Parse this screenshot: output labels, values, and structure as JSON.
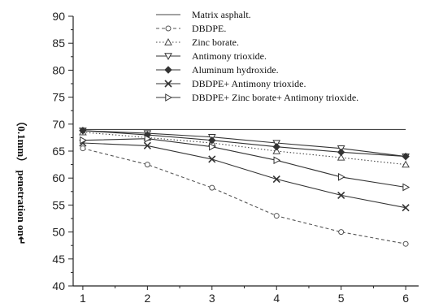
{
  "chart_data": {
    "type": "line",
    "title": "",
    "xlabel": "",
    "ylabel": "（0.1mm） penetration on↵",
    "x": [
      1,
      2,
      3,
      4,
      5,
      6
    ],
    "xlim": [
      0.85,
      6.2
    ],
    "ylim": [
      40,
      90
    ],
    "yticks": [
      40,
      45,
      50,
      55,
      60,
      65,
      70,
      75,
      80,
      85,
      90
    ],
    "grid": false,
    "legend_position": "top-right",
    "series": [
      {
        "name": "Matrix asphalt.",
        "values": [
          69,
          69,
          69,
          69,
          69,
          69
        ],
        "marker": "none",
        "dash": "solid",
        "color": "#444444"
      },
      {
        "name": "DBDPE.",
        "values": [
          65.5,
          62.5,
          58.2,
          53,
          50,
          47.8
        ],
        "marker": "circle-open",
        "dash": "dashed",
        "color": "#555555"
      },
      {
        "name": "Zinc borate.",
        "values": [
          68.5,
          67.5,
          66.5,
          65,
          63.8,
          62.5
        ],
        "marker": "triangle-up-open",
        "dash": "dotted",
        "color": "#444444"
      },
      {
        "name": "Antimony trioxide.",
        "values": [
          68.8,
          68.3,
          67.6,
          66.5,
          65.5,
          64
        ],
        "marker": "triangle-down-open",
        "dash": "solid",
        "color": "#333333"
      },
      {
        "name": "Aluminum hydroxide.",
        "values": [
          68.8,
          68,
          67,
          65.8,
          64.8,
          64
        ],
        "marker": "diamond-filled",
        "dash": "solid",
        "color": "#333333"
      },
      {
        "name": "DBDPE+ Antimony trioxide.",
        "values": [
          66.5,
          66,
          63.5,
          59.8,
          56.8,
          54.5
        ],
        "marker": "x",
        "dash": "solid",
        "color": "#333333"
      },
      {
        "name": "DBDPE+ Zinc borate+ Antimony trioxide.",
        "values": [
          67,
          67.3,
          65.8,
          63.3,
          60.2,
          58.3
        ],
        "marker": "triangle-right-open",
        "dash": "solid",
        "color": "#333333"
      }
    ]
  }
}
